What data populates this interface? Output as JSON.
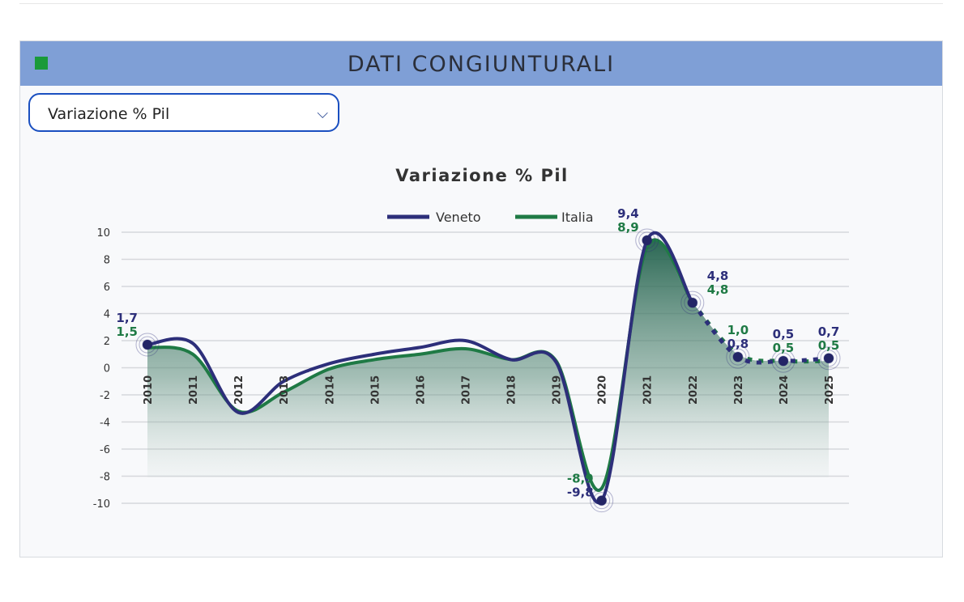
{
  "panel": {
    "title": "DATI CONGIUNTURALI",
    "indicator_color": "#1a9a3a",
    "header_color": "#7f9fd6"
  },
  "selector": {
    "value": "Variazione % Pil"
  },
  "chart_data": {
    "type": "area",
    "title": "Variazione % Pil",
    "legend_position": "top",
    "grid": true,
    "ylim": [
      -10,
      10
    ],
    "yticks": [
      10,
      8,
      6,
      4,
      2,
      0,
      -2,
      -4,
      -6,
      -8,
      -10
    ],
    "categories": [
      "2010",
      "2011",
      "2012",
      "2013",
      "2014",
      "2015",
      "2016",
      "2017",
      "2018",
      "2019",
      "2020",
      "2021",
      "2022",
      "2023",
      "2024",
      "2025"
    ],
    "series": [
      {
        "name": "Veneto",
        "color": "#2d2f7a",
        "values": [
          1.7,
          1.8,
          -3.3,
          -1.0,
          0.3,
          1.0,
          1.5,
          2.0,
          0.6,
          0.4,
          -9.8,
          9.4,
          4.8,
          0.8,
          0.5,
          0.7
        ]
      },
      {
        "name": "Italia",
        "color": "#1f7a45",
        "values": [
          1.5,
          1.0,
          -3.2,
          -1.8,
          -0.1,
          0.6,
          1.0,
          1.4,
          0.6,
          0.5,
          -8.9,
          8.9,
          4.8,
          1.0,
          0.5,
          0.5
        ]
      }
    ],
    "forecast_from": "2022",
    "annotations": [
      {
        "year": "2010",
        "veneto": "1,7",
        "italia": "1,5"
      },
      {
        "year": "2020",
        "veneto": "-9,8",
        "italia": "-8,9"
      },
      {
        "year": "2021",
        "veneto": "9,4",
        "italia": "8,9"
      },
      {
        "year": "2022",
        "veneto": "4,8",
        "italia": "4,8"
      },
      {
        "year": "2023",
        "veneto": "0,8",
        "italia": "1,0"
      },
      {
        "year": "2024",
        "veneto": "0,5",
        "italia": "0,5"
      },
      {
        "year": "2025",
        "veneto": "0,7",
        "italia": "0,5"
      }
    ]
  }
}
